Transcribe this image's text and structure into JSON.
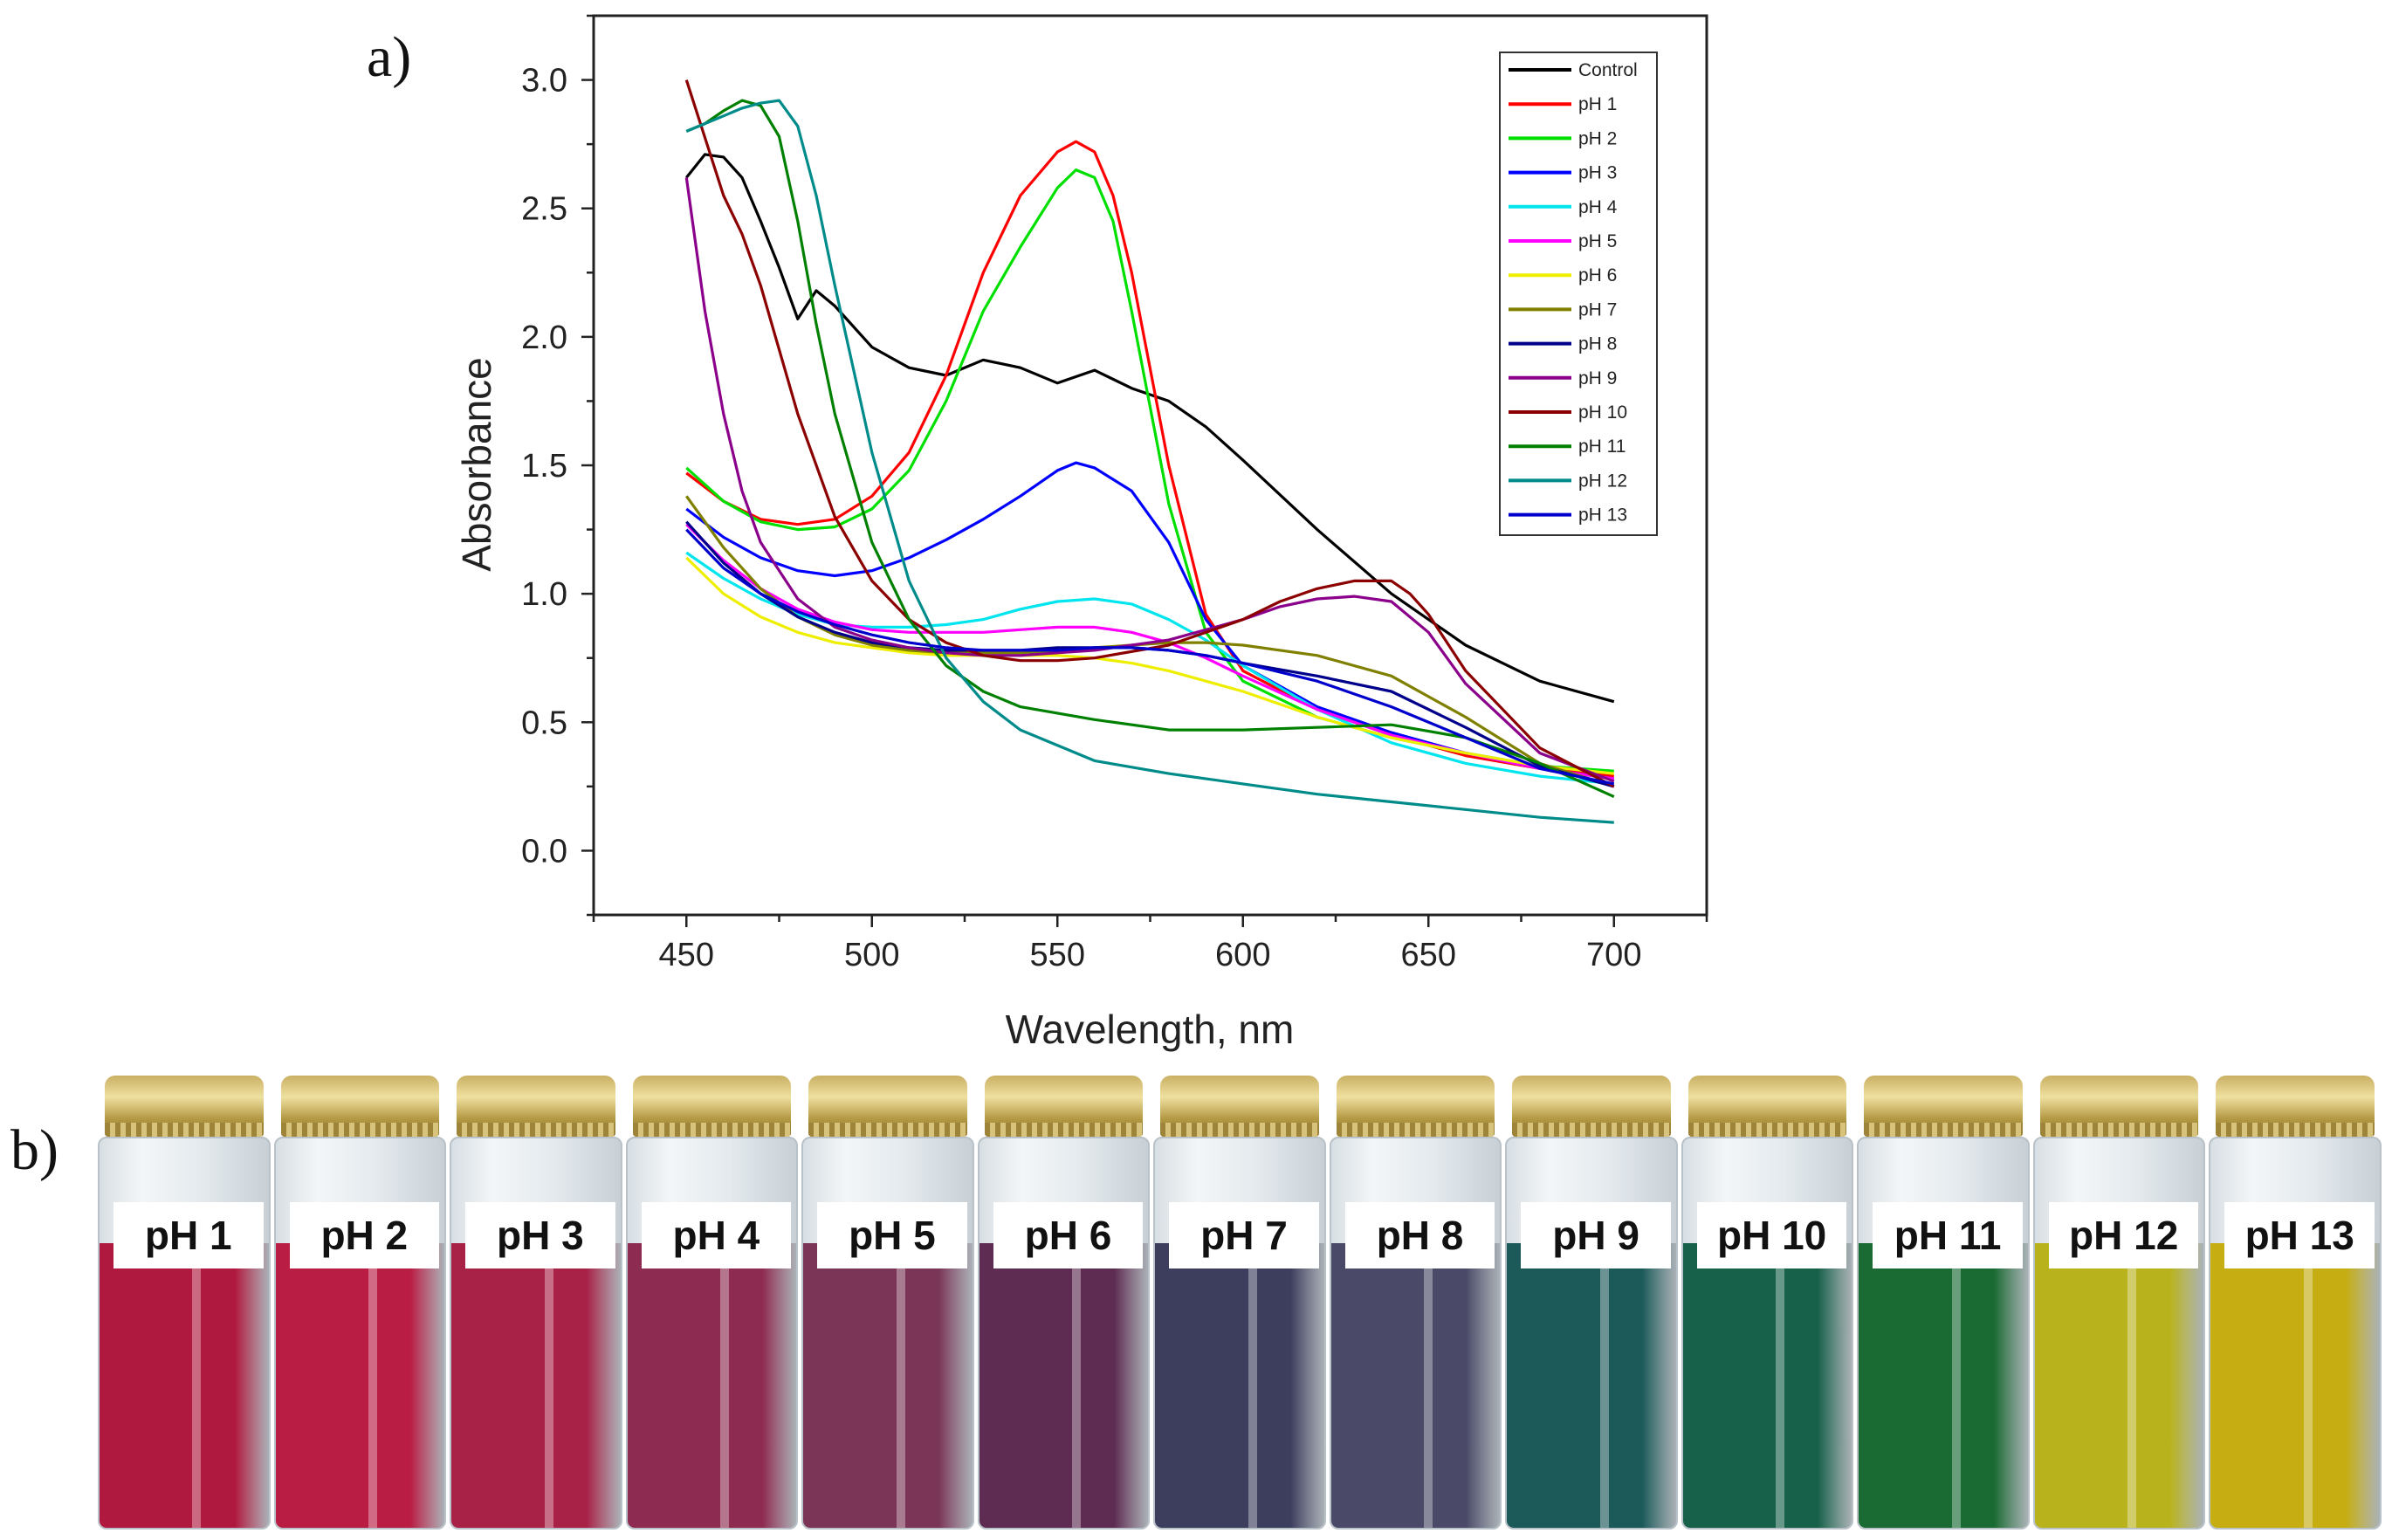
{
  "panels": {
    "a_label": "a)",
    "b_label": "b)"
  },
  "colors": {
    "Control": "#000000",
    "pH 1": "#ff0000",
    "pH 2": "#00e000",
    "pH 3": "#0000ff",
    "pH 4": "#00e5ee",
    "pH 5": "#ff00ff",
    "pH 6": "#eeee00",
    "pH 7": "#808000",
    "pH 8": "#00008b",
    "pH 9": "#8b008b",
    "pH 10": "#8b0000",
    "pH 11": "#008000",
    "pH 12": "#008b8b",
    "pH 13": "#0000cd"
  },
  "chart_data": {
    "type": "line",
    "title": "",
    "xlabel": "Wavelength, nm",
    "ylabel": "Absorbance",
    "xlim": [
      425,
      725
    ],
    "ylim": [
      -0.25,
      3.25
    ],
    "xticks": [
      450,
      500,
      550,
      600,
      650,
      700
    ],
    "yticks": [
      0.0,
      0.5,
      1.0,
      1.5,
      2.0,
      2.5,
      3.0
    ],
    "tick_labels_x": [
      "450",
      "500",
      "550",
      "600",
      "650",
      "700"
    ],
    "tick_labels_y": [
      "0.0",
      "0.5",
      "1.0",
      "1.5",
      "2.0",
      "2.5",
      "3.0"
    ],
    "grid": false,
    "legend_position": "top-right",
    "series": [
      {
        "name": "Control",
        "x": [
          450,
          455,
          460,
          465,
          470,
          475,
          480,
          485,
          490,
          500,
          510,
          520,
          530,
          540,
          550,
          560,
          570,
          580,
          590,
          600,
          620,
          640,
          660,
          680,
          700
        ],
        "y": [
          2.62,
          2.71,
          2.7,
          2.62,
          2.45,
          2.27,
          2.07,
          2.18,
          2.12,
          1.96,
          1.88,
          1.85,
          1.91,
          1.88,
          1.82,
          1.87,
          1.8,
          1.75,
          1.65,
          1.52,
          1.25,
          1.0,
          0.8,
          0.66,
          0.58
        ]
      },
      {
        "name": "pH 1",
        "x": [
          450,
          460,
          470,
          480,
          490,
          500,
          510,
          520,
          530,
          540,
          550,
          555,
          560,
          565,
          570,
          580,
          590,
          600,
          620,
          640,
          660,
          680,
          700
        ],
        "y": [
          1.47,
          1.36,
          1.29,
          1.27,
          1.29,
          1.38,
          1.55,
          1.85,
          2.25,
          2.55,
          2.72,
          2.76,
          2.72,
          2.55,
          2.25,
          1.5,
          0.92,
          0.7,
          0.55,
          0.45,
          0.37,
          0.32,
          0.29
        ]
      },
      {
        "name": "pH 2",
        "x": [
          450,
          460,
          470,
          480,
          490,
          500,
          510,
          520,
          530,
          540,
          550,
          555,
          560,
          565,
          570,
          580,
          590,
          600,
          620,
          640,
          660,
          680,
          700
        ],
        "y": [
          1.49,
          1.36,
          1.28,
          1.25,
          1.26,
          1.33,
          1.48,
          1.75,
          2.1,
          2.35,
          2.58,
          2.65,
          2.62,
          2.45,
          2.1,
          1.35,
          0.85,
          0.66,
          0.52,
          0.44,
          0.38,
          0.33,
          0.31
        ]
      },
      {
        "name": "pH 3",
        "x": [
          450,
          460,
          470,
          480,
          490,
          500,
          510,
          520,
          530,
          540,
          550,
          555,
          560,
          570,
          580,
          590,
          600,
          620,
          640,
          660,
          680,
          700
        ],
        "y": [
          1.33,
          1.22,
          1.14,
          1.09,
          1.07,
          1.09,
          1.14,
          1.21,
          1.29,
          1.38,
          1.48,
          1.51,
          1.49,
          1.4,
          1.2,
          0.9,
          0.72,
          0.56,
          0.46,
          0.38,
          0.32,
          0.28
        ]
      },
      {
        "name": "pH 4",
        "x": [
          450,
          460,
          470,
          480,
          490,
          500,
          510,
          520,
          530,
          540,
          550,
          560,
          570,
          580,
          590,
          600,
          620,
          640,
          660,
          680,
          700
        ],
        "y": [
          1.16,
          1.06,
          0.98,
          0.92,
          0.88,
          0.87,
          0.87,
          0.88,
          0.9,
          0.94,
          0.97,
          0.98,
          0.96,
          0.9,
          0.82,
          0.72,
          0.55,
          0.42,
          0.34,
          0.29,
          0.26
        ]
      },
      {
        "name": "pH 5",
        "x": [
          450,
          460,
          470,
          480,
          490,
          500,
          510,
          520,
          530,
          540,
          550,
          560,
          570,
          580,
          590,
          600,
          620,
          640,
          660,
          680,
          700
        ],
        "y": [
          1.27,
          1.13,
          1.02,
          0.94,
          0.89,
          0.86,
          0.85,
          0.85,
          0.85,
          0.86,
          0.87,
          0.87,
          0.85,
          0.81,
          0.75,
          0.68,
          0.55,
          0.45,
          0.38,
          0.32,
          0.28
        ]
      },
      {
        "name": "pH 6",
        "x": [
          450,
          460,
          470,
          480,
          490,
          500,
          510,
          520,
          530,
          540,
          550,
          560,
          570,
          580,
          590,
          600,
          620,
          640,
          660,
          680,
          700
        ],
        "y": [
          1.14,
          1.0,
          0.91,
          0.85,
          0.81,
          0.79,
          0.77,
          0.76,
          0.76,
          0.76,
          0.76,
          0.75,
          0.73,
          0.7,
          0.66,
          0.62,
          0.52,
          0.44,
          0.38,
          0.33,
          0.3
        ]
      },
      {
        "name": "pH 7",
        "x": [
          450,
          460,
          470,
          480,
          490,
          500,
          510,
          520,
          530,
          540,
          550,
          560,
          570,
          580,
          590,
          600,
          620,
          640,
          660,
          680,
          700
        ],
        "y": [
          1.38,
          1.18,
          1.02,
          0.91,
          0.84,
          0.8,
          0.78,
          0.77,
          0.77,
          0.77,
          0.78,
          0.79,
          0.8,
          0.81,
          0.81,
          0.8,
          0.76,
          0.68,
          0.52,
          0.34,
          0.25
        ]
      },
      {
        "name": "pH 8",
        "x": [
          450,
          460,
          470,
          480,
          490,
          500,
          510,
          520,
          530,
          540,
          550,
          560,
          570,
          580,
          590,
          600,
          620,
          640,
          660,
          680,
          700
        ],
        "y": [
          1.28,
          1.12,
          1.0,
          0.91,
          0.85,
          0.81,
          0.79,
          0.78,
          0.78,
          0.78,
          0.79,
          0.79,
          0.79,
          0.78,
          0.76,
          0.73,
          0.68,
          0.62,
          0.48,
          0.33,
          0.25
        ]
      },
      {
        "name": "pH 9",
        "x": [
          450,
          455,
          460,
          465,
          470,
          480,
          490,
          500,
          510,
          520,
          530,
          540,
          550,
          560,
          580,
          600,
          610,
          620,
          630,
          640,
          650,
          660,
          680,
          700
        ],
        "y": [
          2.62,
          2.1,
          1.7,
          1.4,
          1.2,
          0.98,
          0.87,
          0.82,
          0.79,
          0.77,
          0.76,
          0.76,
          0.77,
          0.78,
          0.82,
          0.9,
          0.95,
          0.98,
          0.99,
          0.97,
          0.85,
          0.65,
          0.38,
          0.27
        ]
      },
      {
        "name": "pH 10",
        "x": [
          450,
          460,
          465,
          470,
          480,
          490,
          500,
          510,
          520,
          530,
          540,
          550,
          560,
          580,
          600,
          610,
          620,
          630,
          640,
          645,
          650,
          660,
          680,
          700
        ],
        "y": [
          3.0,
          2.55,
          2.4,
          2.2,
          1.7,
          1.3,
          1.05,
          0.9,
          0.81,
          0.76,
          0.74,
          0.74,
          0.75,
          0.8,
          0.9,
          0.97,
          1.02,
          1.05,
          1.05,
          1.0,
          0.92,
          0.7,
          0.4,
          0.25
        ]
      },
      {
        "name": "pH 11",
        "x": [
          450,
          455,
          460,
          465,
          470,
          475,
          480,
          485,
          490,
          500,
          510,
          520,
          530,
          540,
          560,
          580,
          600,
          620,
          640,
          660,
          680,
          700
        ],
        "y": [
          2.8,
          2.83,
          2.88,
          2.92,
          2.9,
          2.78,
          2.45,
          2.05,
          1.7,
          1.2,
          0.9,
          0.72,
          0.62,
          0.56,
          0.51,
          0.47,
          0.47,
          0.48,
          0.49,
          0.44,
          0.34,
          0.21
        ]
      },
      {
        "name": "pH 12",
        "x": [
          450,
          455,
          460,
          465,
          470,
          475,
          480,
          485,
          490,
          500,
          510,
          520,
          530,
          540,
          560,
          580,
          600,
          620,
          640,
          660,
          680,
          700
        ],
        "y": [
          2.8,
          2.83,
          2.86,
          2.89,
          2.91,
          2.92,
          2.82,
          2.55,
          2.2,
          1.55,
          1.05,
          0.75,
          0.58,
          0.47,
          0.35,
          0.3,
          0.26,
          0.22,
          0.19,
          0.16,
          0.13,
          0.11
        ]
      },
      {
        "name": "pH 13",
        "x": [
          450,
          460,
          470,
          480,
          490,
          500,
          510,
          520,
          530,
          540,
          550,
          560,
          570,
          580,
          590,
          600,
          620,
          640,
          660,
          680,
          700
        ],
        "y": [
          1.25,
          1.1,
          1.0,
          0.93,
          0.88,
          0.84,
          0.81,
          0.79,
          0.78,
          0.78,
          0.78,
          0.79,
          0.79,
          0.78,
          0.76,
          0.73,
          0.66,
          0.56,
          0.44,
          0.32,
          0.26
        ]
      }
    ]
  },
  "vials": [
    {
      "label": "pH 1",
      "color": "#b0193f"
    },
    {
      "label": "pH 2",
      "color": "#b91d44"
    },
    {
      "label": "pH 3",
      "color": "#a82248"
    },
    {
      "label": "pH 4",
      "color": "#8e2b50"
    },
    {
      "label": "pH 5",
      "color": "#7a3557"
    },
    {
      "label": "pH 6",
      "color": "#5e2c52"
    },
    {
      "label": "pH 7",
      "color": "#3d3d5e"
    },
    {
      "label": "pH 8",
      "color": "#4a4a68"
    },
    {
      "label": "pH 9",
      "color": "#1c5a5a"
    },
    {
      "label": "pH 10",
      "color": "#17614a"
    },
    {
      "label": "pH 11",
      "color": "#1a6a33"
    },
    {
      "label": "pH 12",
      "color": "#b8b31c"
    },
    {
      "label": "pH 13",
      "color": "#c5ad12"
    }
  ]
}
